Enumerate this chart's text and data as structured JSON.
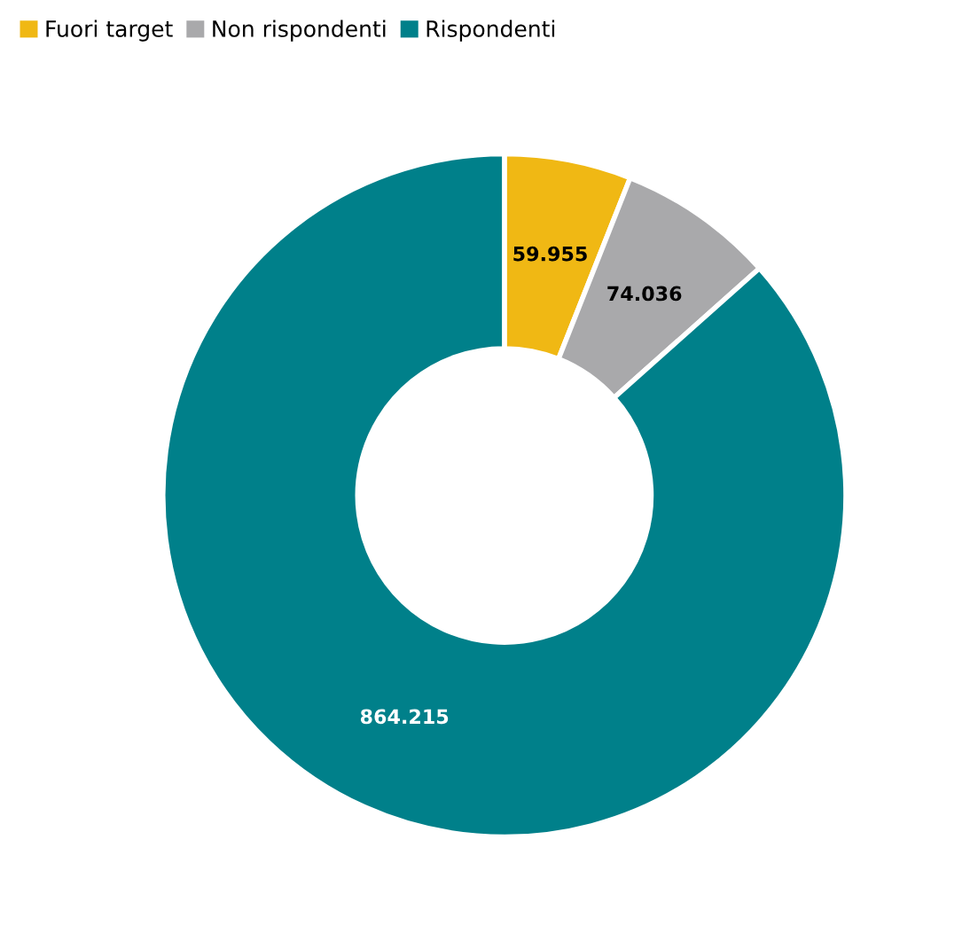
{
  "chart_data": {
    "type": "donut",
    "categories": [
      "Fuori target",
      "Non rispondenti",
      "Rispondenti"
    ],
    "values": [
      59955,
      74036,
      864215
    ],
    "colors": [
      "#f0b814",
      "#a9a9ab",
      "#00808a"
    ],
    "value_labels": [
      "59.955",
      "74.036",
      "864.215"
    ],
    "legend": "top left"
  }
}
